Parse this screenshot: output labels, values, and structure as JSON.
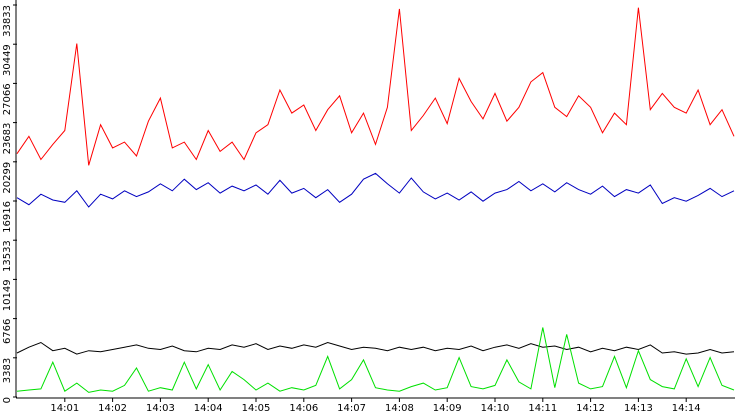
{
  "chart_data": {
    "type": "line",
    "categories": [
      null,
      null,
      null,
      null,
      "14:01",
      null,
      null,
      null,
      "14:02",
      null,
      null,
      null,
      "14:03",
      null,
      null,
      null,
      "14:04",
      null,
      null,
      null,
      "14:05",
      null,
      null,
      null,
      "14:06",
      null,
      null,
      null,
      "14:07",
      null,
      null,
      null,
      "14:08",
      null,
      null,
      null,
      "14:09",
      null,
      null,
      null,
      "14:10",
      null,
      null,
      null,
      "14:11",
      null,
      null,
      null,
      "14:12",
      null,
      null,
      null,
      "14:13",
      null,
      null,
      null,
      "14:14",
      null,
      null,
      null,
      null
    ],
    "ylim": [
      0,
      33833
    ],
    "yticks": [
      0,
      3383,
      6766,
      10149,
      13533,
      16916,
      20299,
      23683,
      27066,
      30449,
      33833
    ],
    "series": [
      {
        "color": "#ff0000",
        "values": [
          21000,
          22500,
          20500,
          21800,
          23000,
          30500,
          20000,
          23500,
          21500,
          22000,
          20800,
          23800,
          25800,
          21500,
          22000,
          20500,
          23000,
          21200,
          22000,
          20500,
          22800,
          23500,
          26500,
          24500,
          25200,
          23000,
          24800,
          26000,
          22800,
          24500,
          21800,
          25000,
          33500,
          23000,
          24300,
          25800,
          23600,
          27500,
          25500,
          24000,
          26200,
          23800,
          25000,
          27200,
          28000,
          25000,
          24200,
          26000,
          25000,
          22800,
          24500,
          23500,
          33600,
          24800,
          26200,
          25000,
          24500,
          26500,
          23500,
          24800,
          22500
        ]
      },
      {
        "color": "#0000c0",
        "values": [
          17200,
          16600,
          17500,
          17000,
          16800,
          17800,
          16400,
          17500,
          17100,
          17800,
          17300,
          17700,
          18400,
          17800,
          18800,
          17900,
          18500,
          17600,
          18200,
          17800,
          18300,
          17500,
          18700,
          17600,
          18000,
          17200,
          17900,
          16800,
          17500,
          18800,
          19300,
          18400,
          17600,
          18900,
          17700,
          17100,
          17600,
          17000,
          17700,
          16900,
          17600,
          17900,
          18600,
          17800,
          18400,
          17700,
          18500,
          17900,
          17500,
          18200,
          17300,
          17900,
          17600,
          18300,
          16700,
          17200,
          16900,
          17400,
          18000,
          17300,
          17800
        ]
      },
      {
        "color": "#000000",
        "values": [
          3800,
          4300,
          4700,
          4000,
          4200,
          3700,
          4000,
          3900,
          4100,
          4300,
          4500,
          4200,
          4100,
          4400,
          4000,
          3900,
          4200,
          4100,
          4500,
          4300,
          4600,
          4100,
          4400,
          4200,
          4500,
          4300,
          4700,
          4400,
          4100,
          4300,
          4200,
          4000,
          4300,
          4100,
          4300,
          4000,
          4200,
          4100,
          4400,
          4000,
          4300,
          4500,
          4200,
          4600,
          4300,
          4400,
          4100,
          4300,
          3900,
          4200,
          4000,
          4300,
          4100,
          4500,
          3800,
          3900,
          3700,
          3800,
          4100,
          3800,
          3900
        ]
      },
      {
        "color": "#00e000",
        "values": [
          500,
          600,
          700,
          3000,
          500,
          1200,
          400,
          600,
          500,
          1000,
          2500,
          500,
          800,
          600,
          3000,
          700,
          2800,
          600,
          2200,
          1500,
          600,
          1200,
          500,
          800,
          600,
          1000,
          3500,
          700,
          1500,
          3200,
          800,
          600,
          500,
          900,
          1200,
          600,
          800,
          3400,
          900,
          700,
          1000,
          3200,
          1300,
          700,
          6000,
          800,
          5400,
          1200,
          700,
          900,
          3500,
          800,
          4000,
          1500,
          900,
          700,
          3300,
          900,
          3400,
          1000,
          600
        ]
      }
    ]
  }
}
